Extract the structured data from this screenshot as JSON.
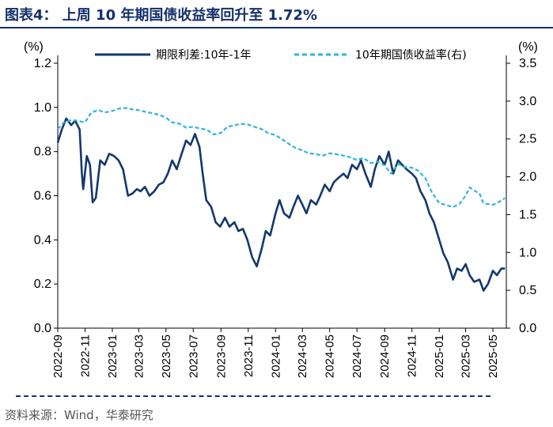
{
  "title": "图表4：  上周 10 年期国债收益率回升至 1.72%",
  "source": "资料来源：Wind，华泰研究",
  "chart_data": {
    "type": "line",
    "left_axis": {
      "unit": "(%)",
      "ylim": [
        0.0,
        1.2
      ],
      "ticks": [
        "0.0",
        "0.2",
        "0.4",
        "0.6",
        "0.8",
        "1.0",
        "1.2"
      ]
    },
    "right_axis": {
      "unit": "(%)",
      "ylim": [
        0.0,
        3.5
      ],
      "ticks": [
        "0.0",
        "0.5",
        "1.0",
        "1.5",
        "2.0",
        "2.5",
        "3.0",
        "3.5"
      ]
    },
    "x_ticks": [
      "2022-09",
      "2022-11",
      "2023-01",
      "2023-03",
      "2023-05",
      "2023-07",
      "2023-09",
      "2023-11",
      "2024-01",
      "2024-03",
      "2024-05",
      "2024-07",
      "2024-09",
      "2024-11",
      "2025-01",
      "2025-03",
      "2025-05"
    ],
    "x_range": [
      "2022-09-01",
      "2025-05-31"
    ],
    "legend_position": "top",
    "series": [
      {
        "name": "期限利差:10年-1年",
        "axis": "left",
        "style": "solid",
        "color": "#13386e",
        "points": [
          [
            "2022-09-01",
            0.84
          ],
          [
            "2022-09-10",
            0.9
          ],
          [
            "2022-09-20",
            0.95
          ],
          [
            "2022-10-01",
            0.92
          ],
          [
            "2022-10-10",
            0.94
          ],
          [
            "2022-10-20",
            0.9
          ],
          [
            "2022-10-25",
            0.7
          ],
          [
            "2022-10-28",
            0.63
          ],
          [
            "2022-11-05",
            0.78
          ],
          [
            "2022-11-12",
            0.74
          ],
          [
            "2022-11-18",
            0.57
          ],
          [
            "2022-11-25",
            0.59
          ],
          [
            "2022-12-05",
            0.76
          ],
          [
            "2022-12-15",
            0.74
          ],
          [
            "2022-12-25",
            0.79
          ],
          [
            "2023-01-05",
            0.78
          ],
          [
            "2023-01-15",
            0.76
          ],
          [
            "2023-01-25",
            0.72
          ],
          [
            "2023-02-05",
            0.6
          ],
          [
            "2023-02-15",
            0.61
          ],
          [
            "2023-02-25",
            0.63
          ],
          [
            "2023-03-05",
            0.62
          ],
          [
            "2023-03-15",
            0.64
          ],
          [
            "2023-03-25",
            0.6
          ],
          [
            "2023-04-05",
            0.62
          ],
          [
            "2023-04-15",
            0.65
          ],
          [
            "2023-04-25",
            0.66
          ],
          [
            "2023-05-05",
            0.7
          ],
          [
            "2023-05-15",
            0.76
          ],
          [
            "2023-05-25",
            0.72
          ],
          [
            "2023-06-05",
            0.79
          ],
          [
            "2023-06-15",
            0.85
          ],
          [
            "2023-06-25",
            0.83
          ],
          [
            "2023-07-05",
            0.88
          ],
          [
            "2023-07-15",
            0.82
          ],
          [
            "2023-07-22",
            0.7
          ],
          [
            "2023-07-30",
            0.58
          ],
          [
            "2023-08-10",
            0.55
          ],
          [
            "2023-08-20",
            0.48
          ],
          [
            "2023-08-30",
            0.46
          ],
          [
            "2023-09-10",
            0.5
          ],
          [
            "2023-09-20",
            0.46
          ],
          [
            "2023-10-01",
            0.48
          ],
          [
            "2023-10-10",
            0.44
          ],
          [
            "2023-10-20",
            0.45
          ],
          [
            "2023-10-30",
            0.4
          ],
          [
            "2023-11-10",
            0.32
          ],
          [
            "2023-11-20",
            0.28
          ],
          [
            "2023-12-01",
            0.36
          ],
          [
            "2023-12-10",
            0.44
          ],
          [
            "2023-12-20",
            0.42
          ],
          [
            "2024-01-01",
            0.52
          ],
          [
            "2024-01-10",
            0.58
          ],
          [
            "2024-01-20",
            0.52
          ],
          [
            "2024-02-01",
            0.5
          ],
          [
            "2024-02-10",
            0.55
          ],
          [
            "2024-02-20",
            0.6
          ],
          [
            "2024-03-01",
            0.56
          ],
          [
            "2024-03-10",
            0.52
          ],
          [
            "2024-03-20",
            0.58
          ],
          [
            "2024-04-01",
            0.56
          ],
          [
            "2024-04-10",
            0.6
          ],
          [
            "2024-04-20",
            0.65
          ],
          [
            "2024-05-01",
            0.62
          ],
          [
            "2024-05-10",
            0.66
          ],
          [
            "2024-05-20",
            0.68
          ],
          [
            "2024-06-01",
            0.7
          ],
          [
            "2024-06-10",
            0.68
          ],
          [
            "2024-06-20",
            0.74
          ],
          [
            "2024-07-01",
            0.72
          ],
          [
            "2024-07-10",
            0.76
          ],
          [
            "2024-07-20",
            0.7
          ],
          [
            "2024-08-01",
            0.64
          ],
          [
            "2024-08-10",
            0.72
          ],
          [
            "2024-08-20",
            0.78
          ],
          [
            "2024-09-01",
            0.74
          ],
          [
            "2024-09-10",
            0.8
          ],
          [
            "2024-09-20",
            0.7
          ],
          [
            "2024-10-01",
            0.76
          ],
          [
            "2024-10-10",
            0.74
          ],
          [
            "2024-10-20",
            0.72
          ],
          [
            "2024-11-01",
            0.7
          ],
          [
            "2024-11-10",
            0.68
          ],
          [
            "2024-11-20",
            0.62
          ],
          [
            "2024-12-01",
            0.58
          ],
          [
            "2024-12-10",
            0.52
          ],
          [
            "2024-12-20",
            0.48
          ],
          [
            "2025-01-01",
            0.4
          ],
          [
            "2025-01-10",
            0.34
          ],
          [
            "2025-01-20",
            0.3
          ],
          [
            "2025-02-01",
            0.22
          ],
          [
            "2025-02-10",
            0.27
          ],
          [
            "2025-02-20",
            0.26
          ],
          [
            "2025-03-01",
            0.29
          ],
          [
            "2025-03-10",
            0.24
          ],
          [
            "2025-03-20",
            0.21
          ],
          [
            "2025-04-01",
            0.22
          ],
          [
            "2025-04-10",
            0.17
          ],
          [
            "2025-04-20",
            0.2
          ],
          [
            "2025-05-01",
            0.26
          ],
          [
            "2025-05-10",
            0.24
          ],
          [
            "2025-05-20",
            0.27
          ],
          [
            "2025-05-28",
            0.27
          ]
        ]
      },
      {
        "name": "10年期国债收益率(右)",
        "axis": "right",
        "style": "dashed",
        "color": "#2fb4dc",
        "points": [
          [
            "2022-09-01",
            2.63
          ],
          [
            "2022-09-15",
            2.72
          ],
          [
            "2022-10-01",
            2.75
          ],
          [
            "2022-10-15",
            2.74
          ],
          [
            "2022-11-01",
            2.72
          ],
          [
            "2022-11-15",
            2.85
          ],
          [
            "2022-12-01",
            2.88
          ],
          [
            "2022-12-15",
            2.85
          ],
          [
            "2023-01-01",
            2.87
          ],
          [
            "2023-01-15",
            2.9
          ],
          [
            "2023-02-01",
            2.91
          ],
          [
            "2023-02-15",
            2.89
          ],
          [
            "2023-03-01",
            2.88
          ],
          [
            "2023-03-15",
            2.86
          ],
          [
            "2023-04-01",
            2.84
          ],
          [
            "2023-04-15",
            2.82
          ],
          [
            "2023-05-01",
            2.78
          ],
          [
            "2023-05-15",
            2.72
          ],
          [
            "2023-06-01",
            2.7
          ],
          [
            "2023-06-15",
            2.65
          ],
          [
            "2023-07-01",
            2.66
          ],
          [
            "2023-07-15",
            2.64
          ],
          [
            "2023-08-01",
            2.62
          ],
          [
            "2023-08-15",
            2.56
          ],
          [
            "2023-09-01",
            2.58
          ],
          [
            "2023-09-15",
            2.66
          ],
          [
            "2023-10-01",
            2.68
          ],
          [
            "2023-10-15",
            2.7
          ],
          [
            "2023-11-01",
            2.69
          ],
          [
            "2023-11-15",
            2.66
          ],
          [
            "2023-12-01",
            2.63
          ],
          [
            "2023-12-15",
            2.58
          ],
          [
            "2024-01-01",
            2.55
          ],
          [
            "2024-01-15",
            2.5
          ],
          [
            "2024-02-01",
            2.43
          ],
          [
            "2024-02-15",
            2.38
          ],
          [
            "2024-03-01",
            2.35
          ],
          [
            "2024-03-15",
            2.31
          ],
          [
            "2024-04-01",
            2.3
          ],
          [
            "2024-04-15",
            2.28
          ],
          [
            "2024-05-01",
            2.31
          ],
          [
            "2024-05-15",
            2.3
          ],
          [
            "2024-06-01",
            2.28
          ],
          [
            "2024-06-15",
            2.26
          ],
          [
            "2024-07-01",
            2.22
          ],
          [
            "2024-07-15",
            2.25
          ],
          [
            "2024-08-01",
            2.18
          ],
          [
            "2024-08-15",
            2.2
          ],
          [
            "2024-09-01",
            2.15
          ],
          [
            "2024-09-15",
            2.04
          ],
          [
            "2024-10-01",
            2.17
          ],
          [
            "2024-10-15",
            2.13
          ],
          [
            "2024-11-01",
            2.12
          ],
          [
            "2024-11-15",
            2.08
          ],
          [
            "2024-12-01",
            1.98
          ],
          [
            "2024-12-15",
            1.8
          ],
          [
            "2025-01-01",
            1.65
          ],
          [
            "2025-01-15",
            1.63
          ],
          [
            "2025-02-01",
            1.6
          ],
          [
            "2025-02-15",
            1.64
          ],
          [
            "2025-03-01",
            1.75
          ],
          [
            "2025-03-10",
            1.86
          ],
          [
            "2025-03-20",
            1.82
          ],
          [
            "2025-04-01",
            1.78
          ],
          [
            "2025-04-10",
            1.65
          ],
          [
            "2025-04-20",
            1.64
          ],
          [
            "2025-05-01",
            1.63
          ],
          [
            "2025-05-15",
            1.67
          ],
          [
            "2025-05-28",
            1.72
          ]
        ]
      }
    ]
  }
}
